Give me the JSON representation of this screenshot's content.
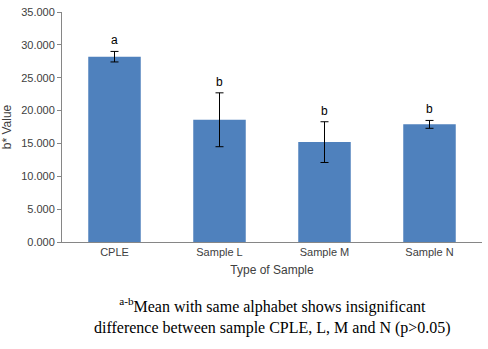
{
  "chart_data": {
    "type": "bar",
    "categories": [
      "CPLE",
      "Sample L",
      "Sample M",
      "Sample N"
    ],
    "values": [
      28.2,
      18.6,
      15.2,
      17.9
    ],
    "errors": [
      0.8,
      4.1,
      3.1,
      0.6
    ],
    "color": "#4f81bd",
    "x_label": "Type of Sample",
    "y_label": "b* Value",
    "ylim": [
      0,
      35
    ],
    "yticks": [
      {
        "value": 0,
        "label": "0.000"
      },
      {
        "value": 5,
        "label": "5.000"
      },
      {
        "value": 10,
        "label": "10.000"
      },
      {
        "value": 15,
        "label": "15.000"
      },
      {
        "value": 20,
        "label": "20.000"
      },
      {
        "value": 25,
        "label": "25.000"
      },
      {
        "value": 30,
        "label": "30.000"
      },
      {
        "value": 35,
        "label": "35.000"
      }
    ],
    "grid": false,
    "significance_letters": [
      "a",
      "b",
      "b",
      "b"
    ],
    "caption": {
      "superscript": "a-b",
      "lines": [
        "Mean with same alphabet shows insignificant",
        "difference between sample CPLE, L, M and N (p>0.05)"
      ]
    }
  }
}
